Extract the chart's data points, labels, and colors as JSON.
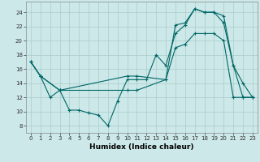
{
  "xlabel": "Humidex (Indice chaleur)",
  "background_color": "#cce8e8",
  "grid_color": "#aacccc",
  "line_color": "#006666",
  "xlim": [
    -0.5,
    23.5
  ],
  "ylim": [
    7,
    25.5
  ],
  "yticks": [
    8,
    10,
    12,
    14,
    16,
    18,
    20,
    22,
    24
  ],
  "xticks": [
    0,
    1,
    2,
    3,
    4,
    5,
    6,
    7,
    8,
    9,
    10,
    11,
    12,
    13,
    14,
    15,
    16,
    17,
    18,
    19,
    20,
    21,
    22,
    23
  ],
  "series": [
    {
      "x": [
        0,
        1,
        2,
        3,
        4,
        5,
        6,
        7,
        8,
        9,
        10,
        11,
        12,
        13,
        14,
        15,
        16,
        17,
        18,
        19,
        20,
        21,
        22,
        23
      ],
      "y": [
        17,
        15,
        12,
        13,
        10.2,
        10.2,
        9.8,
        9.5,
        8.0,
        11.5,
        14.5,
        14.5,
        14.5,
        18,
        16.5,
        21,
        22.2,
        24.5,
        24,
        24,
        22.5,
        16.5,
        14,
        12
      ]
    },
    {
      "x": [
        0,
        1,
        3,
        10,
        11,
        14,
        15,
        16,
        17,
        18,
        19,
        20,
        21,
        22,
        23
      ],
      "y": [
        17,
        15,
        13,
        15,
        15,
        14.5,
        22.2,
        22.5,
        24.5,
        24,
        24,
        23.5,
        16.5,
        12,
        12
      ]
    },
    {
      "x": [
        0,
        1,
        3,
        10,
        11,
        14,
        15,
        16,
        17,
        18,
        19,
        20,
        21,
        22,
        23
      ],
      "y": [
        17,
        15,
        13,
        13,
        13,
        14.5,
        19,
        19.5,
        21,
        21,
        21,
        20,
        12,
        12,
        12
      ]
    }
  ]
}
